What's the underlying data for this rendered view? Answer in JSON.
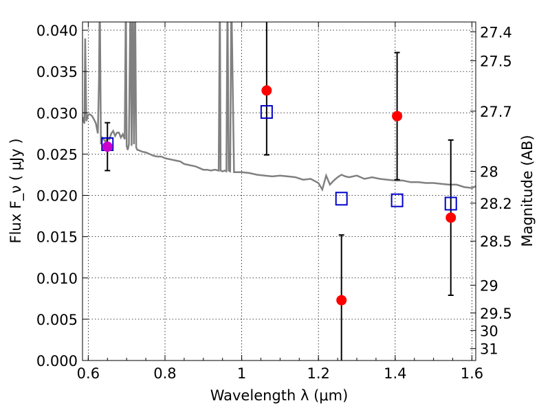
{
  "chart_data": {
    "type": "scatter",
    "xlabel": "Wavelength  λ (μm)",
    "ylabel": "Flux  F_ν  ( μJy )",
    "ylabel_right": "Magnitude (AB)",
    "xlim": [
      0.585,
      1.61
    ],
    "ylim": [
      0.0,
      0.041
    ],
    "x_ticks": [
      0.6,
      0.8,
      1.0,
      1.2,
      1.4,
      1.6
    ],
    "x_tick_labels": [
      "0.6",
      "0.8",
      "1",
      "1.2",
      "1.4",
      "1.6"
    ],
    "y_ticks": [
      0.0,
      0.005,
      0.01,
      0.015,
      0.02,
      0.025,
      0.03,
      0.035,
      0.04
    ],
    "y_tick_labels": [
      "0.000",
      "0.005",
      "0.010",
      "0.015",
      "0.020",
      "0.025",
      "0.030",
      "0.035",
      "0.040"
    ],
    "mag_ticks": [
      27.4,
      27.5,
      27.7,
      28,
      28.2,
      28.5,
      29,
      29.5,
      30,
      31
    ],
    "mag_tick_labels": [
      "27.4",
      "27.5",
      "27.7",
      "28",
      "28.2",
      "28.5",
      "29",
      "29.5",
      "30",
      "31"
    ],
    "grid": true,
    "series": [
      {
        "kind": "model_spectrum_line",
        "color": "#808080",
        "x": [
          0.585,
          0.59,
          0.592,
          0.595,
          0.6,
          0.605,
          0.61,
          0.615,
          0.62,
          0.625,
          0.628,
          0.63,
          0.633,
          0.636,
          0.64,
          0.645,
          0.65,
          0.655,
          0.66,
          0.665,
          0.67,
          0.675,
          0.68,
          0.685,
          0.69,
          0.695,
          0.698,
          0.7,
          0.703,
          0.706,
          0.71,
          0.713,
          0.716,
          0.719,
          0.722,
          0.725,
          0.728,
          0.73,
          0.74,
          0.75,
          0.76,
          0.77,
          0.78,
          0.79,
          0.8,
          0.81,
          0.82,
          0.83,
          0.84,
          0.85,
          0.86,
          0.87,
          0.88,
          0.89,
          0.9,
          0.91,
          0.92,
          0.93,
          0.94,
          0.943,
          0.945,
          0.95,
          0.955,
          0.96,
          0.963,
          0.966,
          0.97,
          0.973,
          0.98,
          1.0,
          1.02,
          1.04,
          1.06,
          1.08,
          1.1,
          1.12,
          1.14,
          1.16,
          1.18,
          1.2,
          1.21,
          1.22,
          1.23,
          1.24,
          1.25,
          1.26,
          1.27,
          1.28,
          1.3,
          1.32,
          1.34,
          1.36,
          1.38,
          1.4,
          1.42,
          1.44,
          1.46,
          1.48,
          1.5,
          1.52,
          1.54,
          1.56,
          1.58,
          1.6,
          1.61
        ],
        "y": [
          0.0295,
          0.0287,
          0.039,
          0.029,
          0.0298,
          0.0298,
          0.0296,
          0.0292,
          0.0287,
          0.0275,
          0.034,
          0.0445,
          0.0262,
          0.027,
          0.0268,
          0.0265,
          0.027,
          0.0268,
          0.0275,
          0.0278,
          0.0272,
          0.0276,
          0.0276,
          0.027,
          0.0274,
          0.0268,
          0.0445,
          0.026,
          0.0255,
          0.0262,
          0.0445,
          0.026,
          0.0445,
          0.0262,
          0.0445,
          0.0258,
          0.0255,
          0.0255,
          0.0253,
          0.0252,
          0.025,
          0.0248,
          0.0247,
          0.0247,
          0.0245,
          0.0244,
          0.0243,
          0.0242,
          0.0241,
          0.0238,
          0.0237,
          0.0236,
          0.0235,
          0.0233,
          0.0231,
          0.0231,
          0.023,
          0.0231,
          0.023,
          0.0445,
          0.023,
          0.0229,
          0.023,
          0.0229,
          0.0445,
          0.023,
          0.0229,
          0.0445,
          0.0228,
          0.0228,
          0.0227,
          0.0225,
          0.0224,
          0.0223,
          0.0224,
          0.0223,
          0.0222,
          0.0219,
          0.022,
          0.0215,
          0.0207,
          0.0224,
          0.0213,
          0.0218,
          0.0222,
          0.0225,
          0.0223,
          0.0222,
          0.0224,
          0.022,
          0.0222,
          0.022,
          0.0219,
          0.0218,
          0.0218,
          0.0216,
          0.0216,
          0.0215,
          0.0215,
          0.0214,
          0.0213,
          0.0213,
          0.021,
          0.0209,
          0.0211
        ]
      },
      {
        "kind": "model_photometry",
        "marker": "open-square",
        "color": "#0000cc",
        "x": [
          0.65,
          1.065,
          1.26,
          1.405,
          1.545
        ],
        "y": [
          0.0262,
          0.0301,
          0.0196,
          0.0194,
          0.019
        ]
      },
      {
        "kind": "observed_photometry",
        "marker": "filled-circle",
        "color": "#ff0000",
        "x": [
          0.65,
          1.065,
          1.26,
          1.405,
          1.545
        ],
        "y": [
          0.0259,
          0.0327,
          0.0073,
          0.0296,
          0.0173
        ],
        "yerr_low": [
          0.0029,
          0.0078,
          0.0081,
          0.0077,
          0.0094
        ],
        "yerr_high": [
          0.0029,
          0.0087,
          0.0079,
          0.0077,
          0.0094
        ]
      }
    ]
  }
}
